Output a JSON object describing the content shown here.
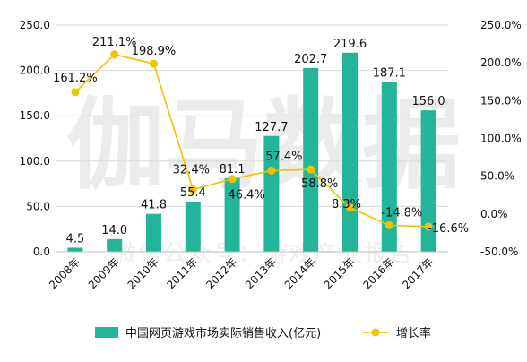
{
  "watermark": {
    "main": "伽马数据",
    "sub": "微信公众号：游戏产业报告"
  },
  "colors": {
    "bar": "#22b59a",
    "line": "#f2c200",
    "grid": "#d9d9d9",
    "axis": "#bfbfbf"
  },
  "chart_data": {
    "type": "bar",
    "categories": [
      "2008年",
      "2009年",
      "2010年",
      "2011年",
      "2012年",
      "2013年",
      "2014年",
      "2015年",
      "2016年",
      "2017年"
    ],
    "series": [
      {
        "name": "中国网页游戏市场实际销售收入(亿元)",
        "type": "bar",
        "axis": "left",
        "values": [
          4.5,
          14.0,
          41.8,
          55.4,
          81.1,
          127.7,
          202.7,
          219.6,
          187.1,
          156.0
        ],
        "labels": [
          "4.5",
          "14.0",
          "41.8",
          "55.4",
          "81.1",
          "127.7",
          "202.7",
          "219.6",
          "187.1",
          "156.0"
        ]
      },
      {
        "name": "增长率",
        "type": "line",
        "axis": "right",
        "values": [
          161.2,
          211.1,
          198.9,
          32.4,
          46.4,
          57.4,
          58.8,
          8.3,
          -14.8,
          -16.6
        ],
        "labels": [
          "161.2%",
          "211.1%",
          "198.9%",
          "32.4%",
          "46.4%",
          "57.4%",
          "58.8%",
          "8.3%",
          "-14.8%",
          "-16.6%"
        ]
      }
    ],
    "y_left": {
      "min": 0,
      "max": 250,
      "ticks": [
        "0.0",
        "50.0",
        "100.0",
        "150.0",
        "200.0",
        "250.0"
      ]
    },
    "y_right": {
      "min": -50,
      "max": 250,
      "ticks": [
        "-50.0%",
        "0.0%",
        "50.0%",
        "100.0%",
        "150.0%",
        "200.0%",
        "250.0%"
      ]
    },
    "legend_position": "bottom",
    "grid": true
  }
}
